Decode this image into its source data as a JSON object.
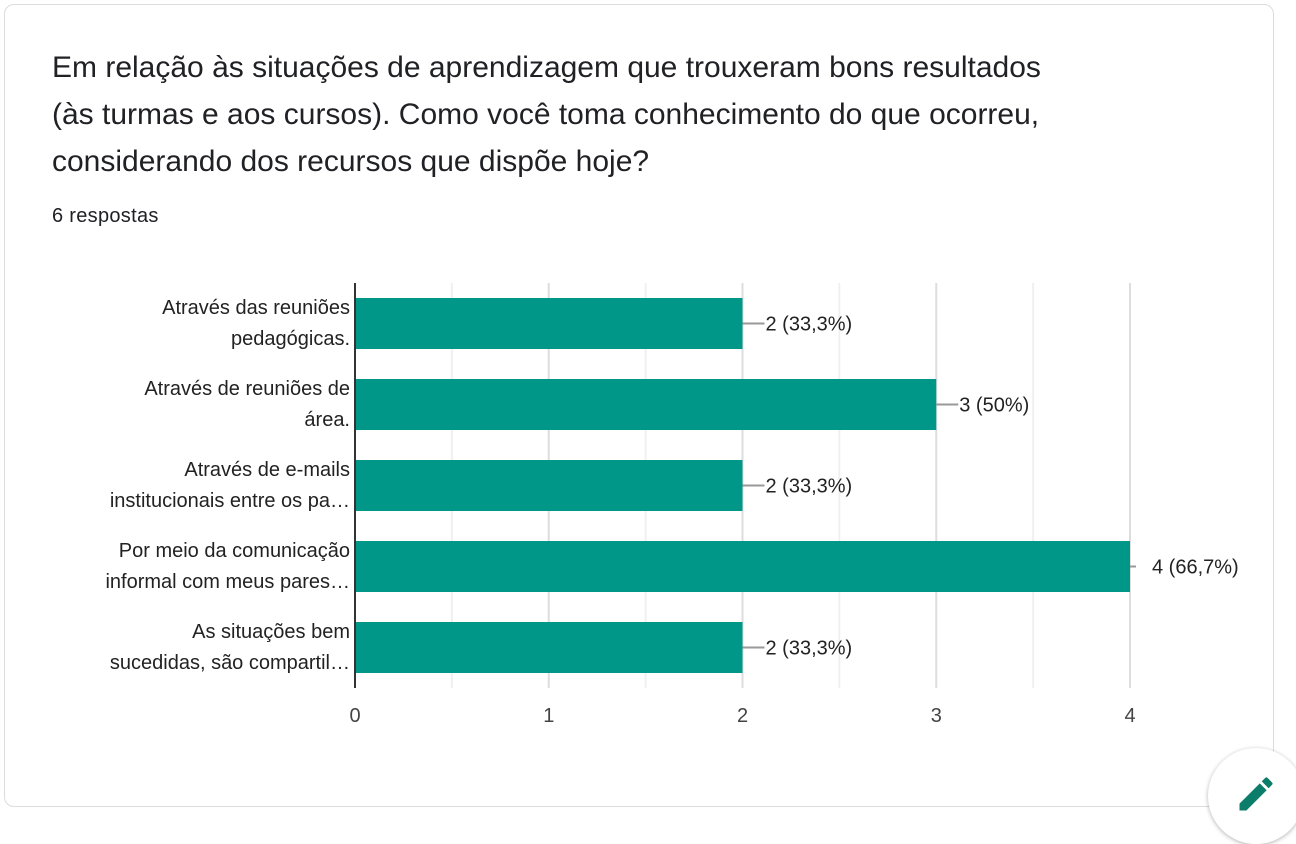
{
  "question": {
    "line1": "Em relação às situações de aprendizagem que trouxeram bons resultados",
    "line2": "(às turmas e aos cursos). Como você toma conhecimento do que ocorreu,",
    "line3": "considerando dos recursos que dispõe hoje?"
  },
  "responses": "6 respostas",
  "chart_data": {
    "type": "bar",
    "orientation": "horizontal",
    "categories": [
      [
        "Através das reuniões",
        "pedagógicas."
      ],
      [
        "Através de reuniões de",
        "área."
      ],
      [
        "Através de e-mails",
        "institucionais entre os pa…"
      ],
      [
        "Por meio da comunicação",
        "informal com meus pares…"
      ],
      [
        "As situações bem",
        "sucedidas, são compartil…"
      ]
    ],
    "values": [
      2,
      3,
      2,
      4,
      2
    ],
    "data_labels": [
      "2 (33,3%)",
      "3 (50%)",
      "2 (33,3%)",
      "4 (66,7%)",
      "2 (33,3%)"
    ],
    "xlim": [
      0,
      4
    ],
    "xticks": [
      "0",
      "1",
      "2",
      "3",
      "4"
    ],
    "bar_color": "#009688",
    "grid": true
  },
  "fab": {
    "icon": "pencil-icon",
    "color": "#0d7d6b"
  }
}
